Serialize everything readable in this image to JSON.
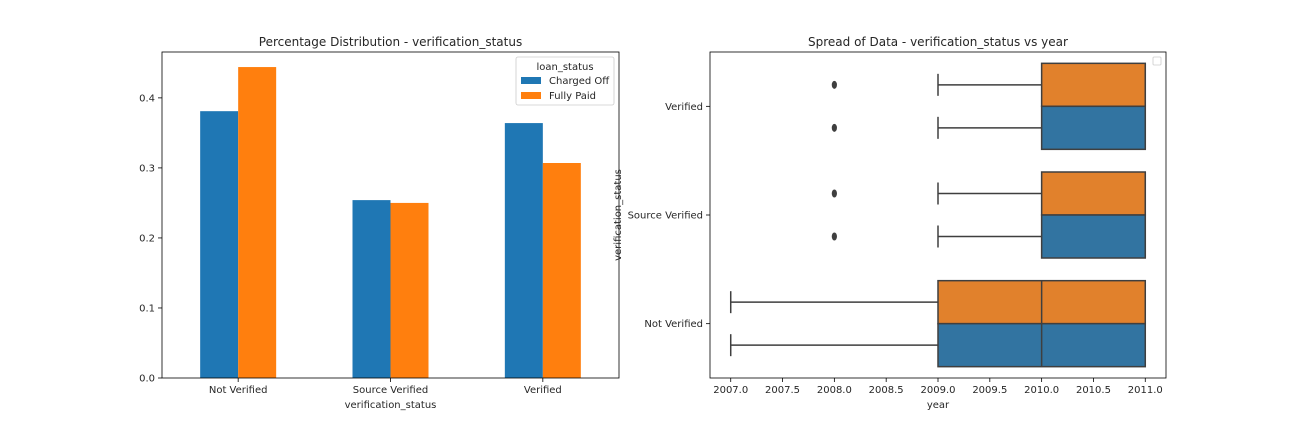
{
  "chart_data": [
    {
      "type": "bar",
      "title": "Percentage Distribution - verification_status",
      "xlabel": "verification_status",
      "ylabel": "",
      "categories": [
        "Not Verified",
        "Source Verified",
        "Verified"
      ],
      "series": [
        {
          "name": "Charged Off",
          "values": [
            0.381,
            0.254,
            0.364
          ],
          "color": "#1f77b4"
        },
        {
          "name": "Fully Paid",
          "values": [
            0.444,
            0.25,
            0.307
          ],
          "color": "#ff7f0e"
        }
      ],
      "ylim": [
        0,
        0.4655
      ],
      "yticks": [
        0.0,
        0.1,
        0.2,
        0.3,
        0.4
      ],
      "ytick_labels": [
        "0.0",
        "0.1",
        "0.2",
        "0.3",
        "0.4"
      ],
      "grid": false,
      "legend": {
        "title": "loan_status",
        "placement": "top-right"
      }
    },
    {
      "type": "boxplot",
      "title": "Spread of Data - verification_status vs year",
      "xlabel": "year",
      "ylabel": "verification_status",
      "orient": "horizontal",
      "xlim": [
        2006.8,
        2011.2
      ],
      "xticks": [
        2007.0,
        2007.5,
        2008.0,
        2008.5,
        2009.0,
        2009.5,
        2010.0,
        2010.5,
        2011.0
      ],
      "xtick_labels": [
        "2007.0",
        "2007.5",
        "2008.0",
        "2008.5",
        "2009.0",
        "2009.5",
        "2010.0",
        "2010.5",
        "2011.0"
      ],
      "categories": [
        "Verified",
        "Source Verified",
        "Not Verified"
      ],
      "hue_colors": {
        "upper": "#e1812c",
        "lower": "#3274a1"
      },
      "boxes": [
        {
          "category": "Verified",
          "hue": "upper",
          "whisker_low": 2009.0,
          "q1": 2010.0,
          "median": 2011.0,
          "q3": 2011.0,
          "whisker_high": 2011.0,
          "outliers": [
            2008.0
          ]
        },
        {
          "category": "Verified",
          "hue": "lower",
          "whisker_low": 2009.0,
          "q1": 2010.0,
          "median": 2011.0,
          "q3": 2011.0,
          "whisker_high": 2011.0,
          "outliers": [
            2008.0
          ]
        },
        {
          "category": "Source Verified",
          "hue": "upper",
          "whisker_low": 2009.0,
          "q1": 2010.0,
          "median": 2011.0,
          "q3": 2011.0,
          "whisker_high": 2011.0,
          "outliers": [
            2008.0
          ]
        },
        {
          "category": "Source Verified",
          "hue": "lower",
          "whisker_low": 2009.0,
          "q1": 2010.0,
          "median": 2011.0,
          "q3": 2011.0,
          "whisker_high": 2011.0,
          "outliers": [
            2008.0
          ]
        },
        {
          "category": "Not Verified",
          "hue": "upper",
          "whisker_low": 2007.0,
          "q1": 2009.0,
          "median": 2010.0,
          "q3": 2011.0,
          "whisker_high": 2011.0,
          "outliers": []
        },
        {
          "category": "Not Verified",
          "hue": "lower",
          "whisker_low": 2007.0,
          "q1": 2009.0,
          "median": 2010.0,
          "q3": 2011.0,
          "whisker_high": 2011.0,
          "outliers": []
        }
      ],
      "legend": {
        "placement": "top-right",
        "empty": true
      }
    }
  ]
}
